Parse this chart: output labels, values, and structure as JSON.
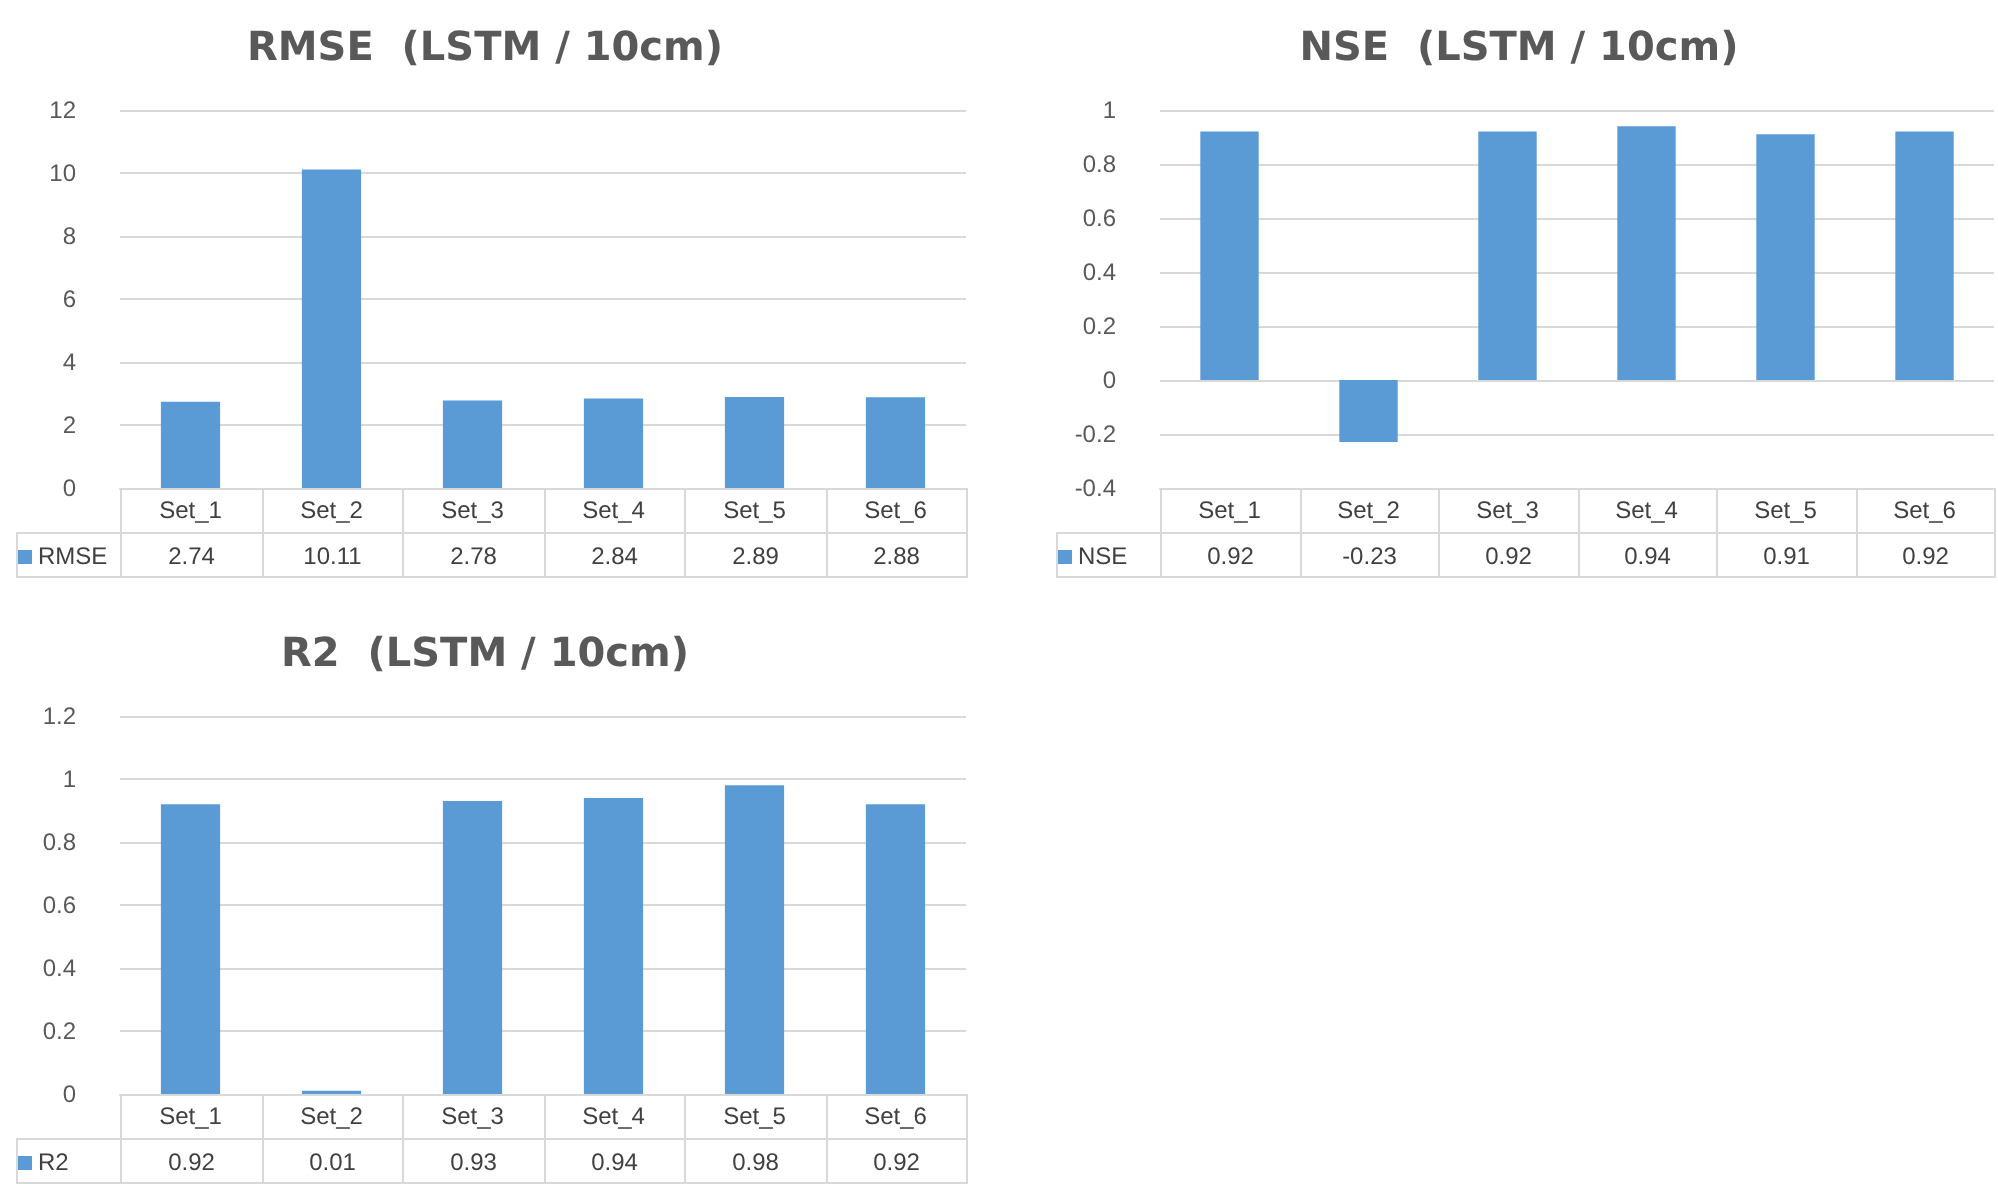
{
  "chart_data": [
    {
      "type": "bar",
      "title": "RMSE  (LSTM / 10cm)",
      "categories": [
        "Set_1",
        "Set_2",
        "Set_3",
        "Set_4",
        "Set_5",
        "Set_6"
      ],
      "series": [
        {
          "name": "RMSE",
          "color": "#5b9bd5",
          "values": [
            2.74,
            10.11,
            2.78,
            2.84,
            2.89,
            2.88
          ]
        }
      ],
      "ylim": [
        0,
        12
      ],
      "yticks": [
        0,
        2,
        4,
        6,
        8,
        10,
        12
      ],
      "grid": "y",
      "legend": "bottom left",
      "data_labels": true
    },
    {
      "type": "bar",
      "title": "NSE  (LSTM / 10cm)",
      "categories": [
        "Set_1",
        "Set_2",
        "Set_3",
        "Set_4",
        "Set_5",
        "Set_6"
      ],
      "series": [
        {
          "name": "NSE",
          "color": "#5b9bd5",
          "values": [
            0.92,
            -0.23,
            0.92,
            0.94,
            0.91,
            0.92
          ]
        }
      ],
      "ylim": [
        -0.4,
        1
      ],
      "yticks": [
        -0.4,
        -0.2,
        0,
        0.2,
        0.4,
        0.6,
        0.8,
        1
      ],
      "grid": "y",
      "legend": "bottom left",
      "data_labels": true
    },
    {
      "type": "bar",
      "title": "R2  (LSTM / 10cm)",
      "categories": [
        "Set_1",
        "Set_2",
        "Set_3",
        "Set_4",
        "Set_5",
        "Set_6"
      ],
      "series": [
        {
          "name": "R2",
          "color": "#5b9bd5",
          "values": [
            0.92,
            0.01,
            0.93,
            0.94,
            0.98,
            0.92
          ]
        }
      ],
      "ylim": [
        0,
        1.2
      ],
      "yticks": [
        0,
        0.2,
        0.4,
        0.6,
        0.8,
        1,
        1.2
      ],
      "grid": "y",
      "legend": "bottom left",
      "data_labels": true
    }
  ]
}
